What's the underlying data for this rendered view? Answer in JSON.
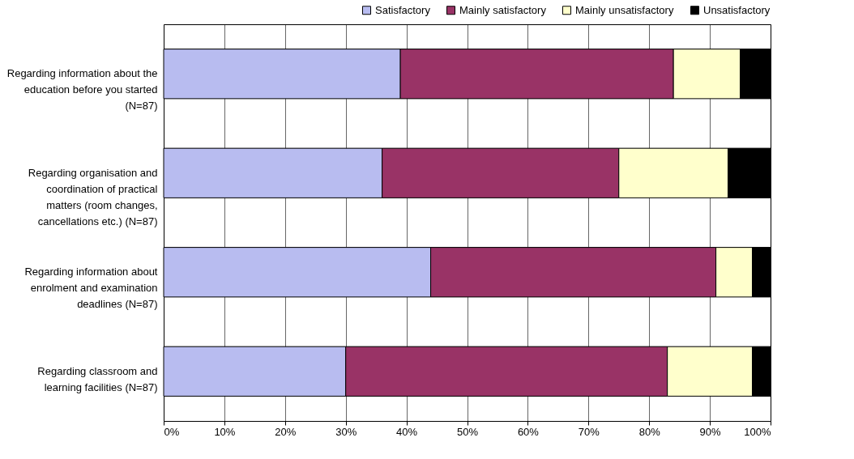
{
  "chart_data": {
    "type": "bar",
    "orientation": "horizontal",
    "stacked": true,
    "categories": [
      "Regarding information about the education before you started (N=87)",
      "Regarding organisation and coordination of practical matters (room changes, cancellations etc.) (N=87)",
      "Regarding information about enrolment and examination deadlines (N=87)",
      "Regarding classroom and learning facilities (N=87)"
    ],
    "series": [
      {
        "name": "Satisfactory",
        "color": "#b8bcf0",
        "values": [
          39,
          36,
          44,
          30
        ]
      },
      {
        "name": "Mainly satisfactory",
        "color": "#993366",
        "values": [
          45,
          39,
          47,
          53
        ]
      },
      {
        "name": "Mainly unsatisfactory",
        "color": "#ffffcc",
        "values": [
          11,
          18,
          6,
          14
        ]
      },
      {
        "name": "Unsatisfactory",
        "color": "#000000",
        "values": [
          5,
          7,
          3,
          3
        ]
      }
    ],
    "xlim": [
      0,
      100
    ],
    "xticks": [
      {
        "value": 0,
        "label": "0%"
      },
      {
        "value": 10,
        "label": "10%"
      },
      {
        "value": 20,
        "label": "20%"
      },
      {
        "value": 30,
        "label": "30%"
      },
      {
        "value": 40,
        "label": "40%"
      },
      {
        "value": 50,
        "label": "50%"
      },
      {
        "value": 60,
        "label": "60%"
      },
      {
        "value": 70,
        "label": "70%"
      },
      {
        "value": 80,
        "label": "80%"
      },
      {
        "value": 90,
        "label": "90%"
      },
      {
        "value": 100,
        "label": "100%"
      }
    ],
    "grid": true,
    "legend": "top right"
  }
}
